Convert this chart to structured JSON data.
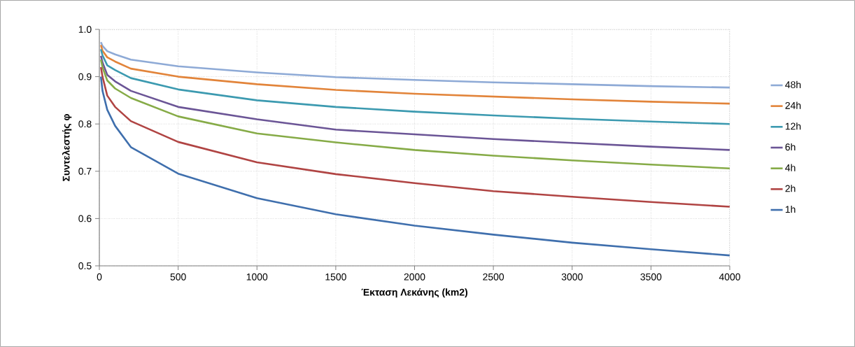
{
  "chart_data": {
    "type": "line",
    "xlabel": "Έκταση Λεκάνης (km2)",
    "ylabel": "Συντελεστής φ",
    "x": [
      10,
      20,
      50,
      100,
      200,
      500,
      1000,
      1500,
      2000,
      2500,
      3000,
      3500,
      4000
    ],
    "series": [
      {
        "name": "48h",
        "color": "#8eaad6",
        "values": [
          0.973,
          0.965,
          0.954,
          0.947,
          0.936,
          0.922,
          0.909,
          0.899,
          0.893,
          0.888,
          0.884,
          0.88,
          0.877
        ]
      },
      {
        "name": "24h",
        "color": "#e2843a",
        "values": [
          0.967,
          0.955,
          0.941,
          0.932,
          0.917,
          0.9,
          0.884,
          0.872,
          0.864,
          0.858,
          0.852,
          0.847,
          0.843
        ]
      },
      {
        "name": "12h",
        "color": "#3c9ab0",
        "values": [
          0.958,
          0.945,
          0.924,
          0.914,
          0.897,
          0.873,
          0.85,
          0.836,
          0.826,
          0.818,
          0.811,
          0.805,
          0.8
        ]
      },
      {
        "name": "6h",
        "color": "#6b5596",
        "values": [
          0.944,
          0.93,
          0.904,
          0.89,
          0.87,
          0.836,
          0.81,
          0.788,
          0.778,
          0.768,
          0.76,
          0.752,
          0.745
        ]
      },
      {
        "name": "4h",
        "color": "#86ab47",
        "values": [
          0.936,
          0.92,
          0.892,
          0.875,
          0.855,
          0.816,
          0.78,
          0.761,
          0.745,
          0.733,
          0.723,
          0.714,
          0.706
        ]
      },
      {
        "name": "2h",
        "color": "#b04443",
        "values": [
          0.92,
          0.9,
          0.86,
          0.836,
          0.806,
          0.762,
          0.719,
          0.694,
          0.675,
          0.658,
          0.646,
          0.635,
          0.625
        ]
      },
      {
        "name": "1h",
        "color": "#3f6fad",
        "values": [
          0.9,
          0.87,
          0.83,
          0.796,
          0.751,
          0.695,
          0.643,
          0.609,
          0.585,
          0.566,
          0.549,
          0.535,
          0.522
        ]
      }
    ],
    "xlim": [
      0,
      4000
    ],
    "ylim": [
      0.5,
      1.0
    ],
    "xticks": [
      0,
      500,
      1000,
      1500,
      2000,
      2500,
      3000,
      3500,
      4000
    ],
    "yticks": [
      {
        "value": 0.5,
        "label": "0.5"
      },
      {
        "value": 0.6,
        "label": "0.6"
      },
      {
        "value": 0.7,
        "label": "0.7"
      },
      {
        "value": 0.8,
        "label": "0.8"
      },
      {
        "value": 0.9,
        "label": "0.9"
      },
      {
        "value": 1.0,
        "label": "1.0"
      }
    ],
    "grid": true,
    "legend": "right",
    "marker": "none",
    "line_style": "solid"
  }
}
